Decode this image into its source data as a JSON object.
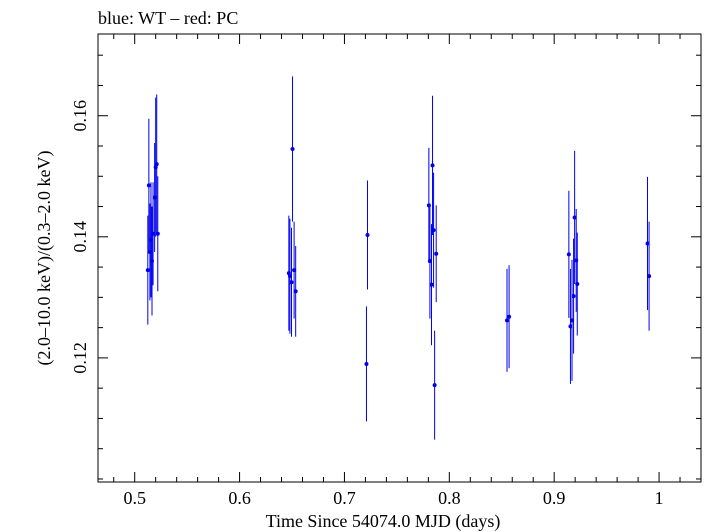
{
  "chart_data": {
    "type": "scatter",
    "title": "blue: WT – red: PC",
    "xlabel": "Time Since 54074.0 MJD (days)",
    "ylabel": "(2.0–10.0 keV)/(0.3–2.0 keV)",
    "xlim": [
      0.465,
      1.04
    ],
    "ylim": [
      0.0995,
      0.1735
    ],
    "x_ticks": [
      0.5,
      0.6,
      0.7,
      0.8,
      0.9,
      1.0
    ],
    "x_tick_labels": [
      "0.5",
      "0.6",
      "0.7",
      "0.8",
      "0.9",
      "1"
    ],
    "x_minor_step": 0.02,
    "y_ticks": [
      0.12,
      0.14,
      0.16
    ],
    "y_tick_labels": [
      "0.12",
      "0.14",
      "0.16"
    ],
    "y_minor_step": 0.005,
    "grid": false,
    "series": [
      {
        "color": "#0000ee",
        "points": [
          {
            "x": 0.5125,
            "y": 0.1345,
            "err": 0.009
          },
          {
            "x": 0.5135,
            "y": 0.1485,
            "err": 0.011
          },
          {
            "x": 0.5145,
            "y": 0.1375,
            "err": 0.008
          },
          {
            "x": 0.5155,
            "y": 0.1395,
            "err": 0.0095
          },
          {
            "x": 0.5165,
            "y": 0.136,
            "err": 0.009
          },
          {
            "x": 0.5175,
            "y": 0.1405,
            "err": 0.0085
          },
          {
            "x": 0.519,
            "y": 0.1465,
            "err": 0.009
          },
          {
            "x": 0.52,
            "y": 0.1515,
            "err": 0.0115
          },
          {
            "x": 0.521,
            "y": 0.152,
            "err": 0.0115
          },
          {
            "x": 0.522,
            "y": 0.1405,
            "err": 0.0095
          },
          {
            "x": 0.647,
            "y": 0.134,
            "err": 0.0095
          },
          {
            "x": 0.648,
            "y": 0.1335,
            "err": 0.0095
          },
          {
            "x": 0.6495,
            "y": 0.1325,
            "err": 0.009
          },
          {
            "x": 0.6505,
            "y": 0.1545,
            "err": 0.012
          },
          {
            "x": 0.652,
            "y": 0.1345,
            "err": 0.008
          },
          {
            "x": 0.6535,
            "y": 0.131,
            "err": 0.0075
          },
          {
            "x": 0.721,
            "y": 0.119,
            "err": 0.0095
          },
          {
            "x": 0.722,
            "y": 0.1403,
            "err": 0.009
          },
          {
            "x": 0.7805,
            "y": 0.1452,
            "err": 0.0095
          },
          {
            "x": 0.7815,
            "y": 0.136,
            "err": 0.0095
          },
          {
            "x": 0.783,
            "y": 0.1321,
            "err": 0.01
          },
          {
            "x": 0.784,
            "y": 0.1518,
            "err": 0.0115
          },
          {
            "x": 0.785,
            "y": 0.1411,
            "err": 0.0095
          },
          {
            "x": 0.786,
            "y": 0.1155,
            "err": 0.009
          },
          {
            "x": 0.7875,
            "y": 0.1372,
            "err": 0.008
          },
          {
            "x": 0.855,
            "y": 0.1262,
            "err": 0.0085
          },
          {
            "x": 0.857,
            "y": 0.1268,
            "err": 0.0085
          },
          {
            "x": 0.914,
            "y": 0.1371,
            "err": 0.0105
          },
          {
            "x": 0.9155,
            "y": 0.1252,
            "err": 0.0095
          },
          {
            "x": 0.917,
            "y": 0.1262,
            "err": 0.01
          },
          {
            "x": 0.9185,
            "y": 0.1302,
            "err": 0.0095
          },
          {
            "x": 0.9195,
            "y": 0.1432,
            "err": 0.011
          },
          {
            "x": 0.921,
            "y": 0.1361,
            "err": 0.0085
          },
          {
            "x": 0.922,
            "y": 0.1322,
            "err": 0.0085
          },
          {
            "x": 0.989,
            "y": 0.1389,
            "err": 0.011
          },
          {
            "x": 0.9905,
            "y": 0.1335,
            "err": 0.009
          }
        ]
      }
    ]
  }
}
